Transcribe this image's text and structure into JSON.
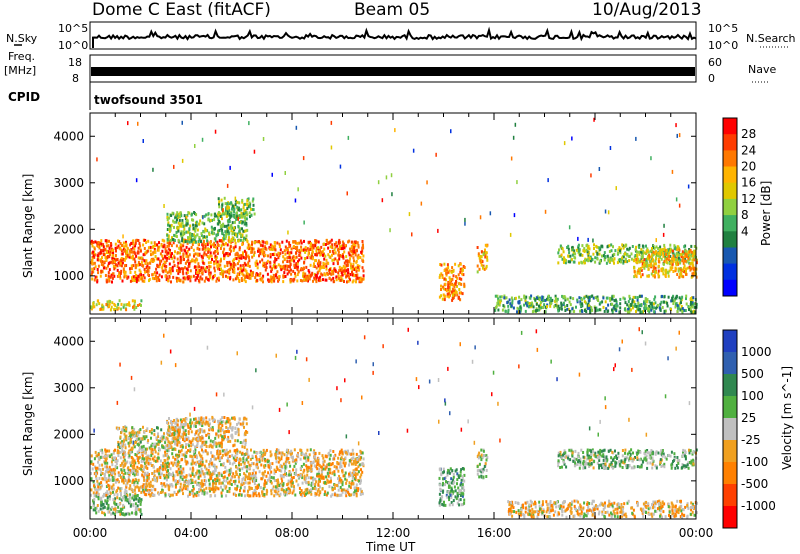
{
  "header": {
    "radar": "Dome C East (fitACF)",
    "beam": "Beam 05",
    "date": "10/Aug/2013"
  },
  "panels": {
    "nsky_label": "N.Sky",
    "nsearch_label": "N.Search",
    "pow_hi": "10^5",
    "pow_lo": "10^0",
    "freq_label": "Freq.",
    "freq_unit": "[MHz]",
    "freq_ticks": [
      "18",
      "8"
    ],
    "nave_label": "Nave",
    "nave_ticks": [
      "60",
      "0"
    ],
    "cpid_label": "CPID",
    "cpid_value": "twofsound 3501"
  },
  "chart_data": [
    {
      "type": "heatmap",
      "name": "power",
      "ylabel": "Slant Range [km]",
      "xlabel": "Time UT",
      "x_ticks": [
        "00:00",
        "04:00",
        "08:00",
        "12:00",
        "16:00",
        "20:00",
        "00:00"
      ],
      "xlim_hours": [
        0,
        24
      ],
      "y_ticks": [
        1000,
        2000,
        3000,
        4000
      ],
      "ylim": [
        180,
        4500
      ],
      "colorbar": {
        "label": "Power [dB]",
        "ticks": [
          "28",
          "24",
          "20",
          "16",
          "12",
          "8",
          "4"
        ],
        "colors": [
          "#ff0000",
          "#ff3c00",
          "#ff7800",
          "#ffb400",
          "#e0c800",
          "#90d040",
          "#40b060",
          "#208040",
          "#1858b0",
          "#0030e0",
          "#0000ff"
        ],
        "range": [
          0,
          30
        ]
      },
      "scatter_regions": [
        {
          "t0": 0.0,
          "t1": 10.8,
          "r0": 900,
          "r1": 1800,
          "value": 24
        },
        {
          "t0": 0.0,
          "t1": 2.0,
          "r0": 300,
          "r1": 500,
          "value": 18
        },
        {
          "t0": 3.0,
          "t1": 6.2,
          "r0": 1750,
          "r1": 2400,
          "value": 14
        },
        {
          "t0": 5.0,
          "t1": 6.5,
          "r0": 2300,
          "r1": 2700,
          "value": 14
        },
        {
          "t0": 13.8,
          "t1": 14.8,
          "r0": 500,
          "r1": 1300,
          "value": 22
        },
        {
          "t0": 15.3,
          "t1": 15.7,
          "r0": 1100,
          "r1": 1700,
          "value": 20
        },
        {
          "t0": 16.0,
          "t1": 24.0,
          "r0": 250,
          "r1": 600,
          "value": 12
        },
        {
          "t0": 18.5,
          "t1": 24.0,
          "r0": 1300,
          "r1": 1700,
          "value": 14
        },
        {
          "t0": 21.5,
          "t1": 24.0,
          "r0": 1000,
          "r1": 1600,
          "value": 20
        }
      ]
    },
    {
      "type": "heatmap",
      "name": "velocity",
      "ylabel": "Slant Range [km]",
      "xlabel": "Time UT",
      "x_ticks": [
        "00:00",
        "04:00",
        "08:00",
        "12:00",
        "16:00",
        "20:00",
        "00:00"
      ],
      "xlim_hours": [
        0,
        24
      ],
      "y_ticks": [
        1000,
        2000,
        3000,
        4000
      ],
      "ylim": [
        180,
        4500
      ],
      "colorbar": {
        "label": "Velocity [m s^-1]",
        "ticks": [
          "1000",
          "500",
          "100",
          "25",
          "-25",
          "-100",
          "-500",
          "-1000"
        ],
        "colors": [
          "#2040c0",
          "#3060b0",
          "#308850",
          "#50b040",
          "#c0c0c0",
          "#f0a020",
          "#ff8000",
          "#ff4000",
          "#ff0000"
        ],
        "range": [
          -1200,
          1200
        ]
      },
      "scatter_regions": [
        {
          "t0": 0.0,
          "t1": 10.8,
          "r0": 700,
          "r1": 1700,
          "value": -150
        },
        {
          "t0": 1.0,
          "t1": 3.5,
          "r0": 1700,
          "r1": 2200,
          "value": 0
        },
        {
          "t0": 3.0,
          "t1": 6.2,
          "r0": 1750,
          "r1": 2400,
          "value": -200
        },
        {
          "t0": 0.0,
          "t1": 2.0,
          "r0": 300,
          "r1": 700,
          "value": 200
        },
        {
          "t0": 13.8,
          "t1": 14.8,
          "r0": 500,
          "r1": 1300,
          "value": 300
        },
        {
          "t0": 15.3,
          "t1": 15.7,
          "r0": 1100,
          "r1": 1700,
          "value": 200
        },
        {
          "t0": 16.5,
          "t1": 24.0,
          "r0": 250,
          "r1": 600,
          "value": -200
        },
        {
          "t0": 18.5,
          "t1": 24.0,
          "r0": 1300,
          "r1": 1700,
          "value": 200
        }
      ]
    }
  ]
}
